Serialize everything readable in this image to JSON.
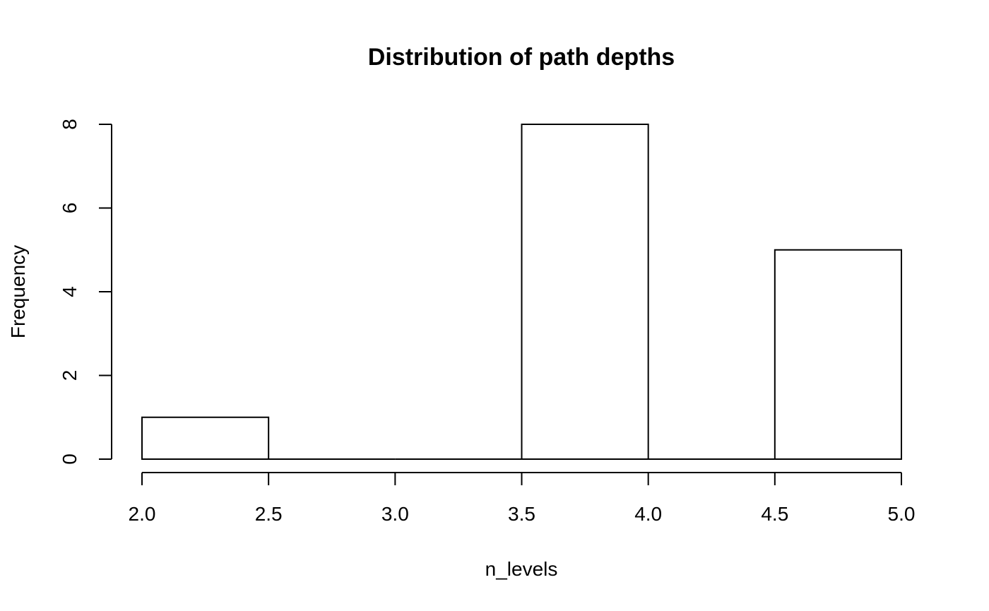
{
  "chart_data": {
    "type": "bar",
    "subtype": "histogram",
    "title": "Distribution of path depths",
    "xlabel": "n_levels",
    "ylabel": "Frequency",
    "bins": [
      {
        "start": 2.0,
        "end": 2.5,
        "count": 1
      },
      {
        "start": 2.5,
        "end": 3.0,
        "count": 0
      },
      {
        "start": 3.0,
        "end": 3.5,
        "count": 0
      },
      {
        "start": 3.5,
        "end": 4.0,
        "count": 8
      },
      {
        "start": 4.0,
        "end": 4.5,
        "count": 0
      },
      {
        "start": 4.5,
        "end": 5.0,
        "count": 5
      }
    ],
    "xlim": [
      2.0,
      5.0
    ],
    "ylim": [
      0,
      8
    ],
    "x_ticks": [
      2.0,
      2.5,
      3.0,
      3.5,
      4.0,
      4.5,
      5.0
    ],
    "x_tick_labels": [
      "2.0",
      "2.5",
      "3.0",
      "3.5",
      "4.0",
      "4.5",
      "5.0"
    ],
    "y_ticks": [
      0,
      2,
      4,
      6,
      8
    ],
    "y_tick_labels": [
      "0",
      "2",
      "4",
      "6",
      "8"
    ],
    "grid": false,
    "legend": "none",
    "bar_fill": "#ffffff",
    "bar_stroke": "#000000"
  }
}
